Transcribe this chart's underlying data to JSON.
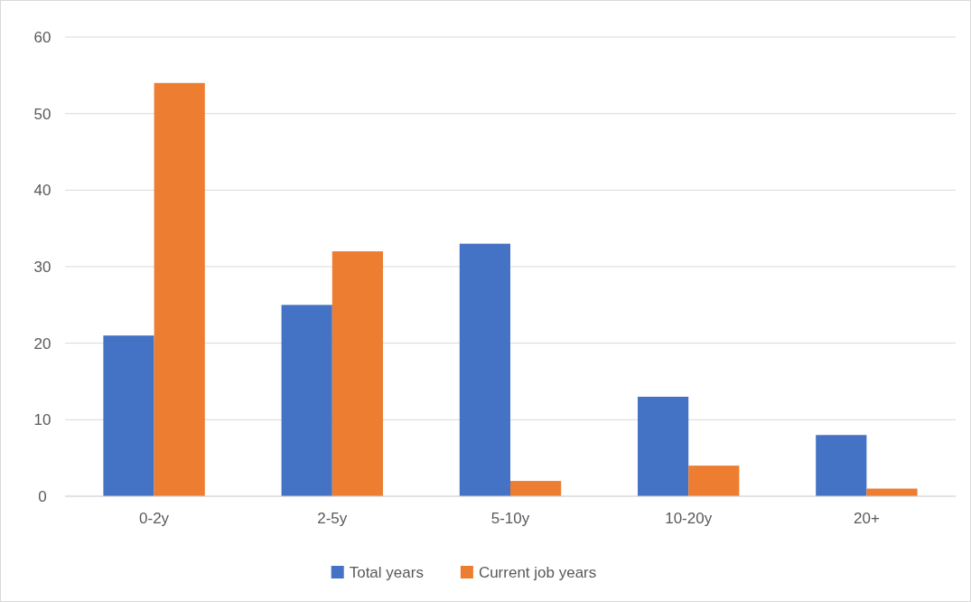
{
  "chart_data": {
    "type": "bar",
    "categories": [
      "0-2y",
      "2-5y",
      "5-10y",
      "10-20y",
      "20+"
    ],
    "series": [
      {
        "name": "Total years",
        "color": "#4472c4",
        "values": [
          21,
          25,
          33,
          13,
          8
        ]
      },
      {
        "name": "Current job years",
        "color": "#ed7d31",
        "values": [
          54,
          32,
          2,
          4,
          1
        ]
      }
    ],
    "ylim": [
      0,
      60
    ],
    "yticks": [
      0,
      10,
      20,
      30,
      40,
      50,
      60
    ],
    "grid": "y",
    "legend": "bottom"
  }
}
